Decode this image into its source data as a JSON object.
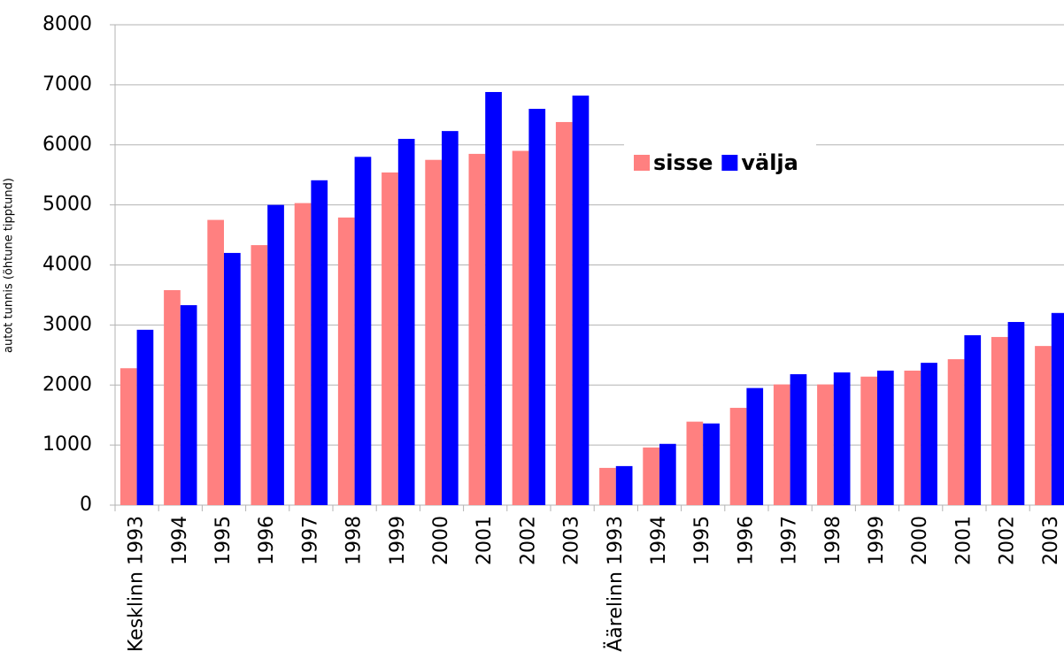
{
  "chart_data": {
    "type": "bar",
    "y_label": "autot tunnis (õhtune tipptund)",
    "categories": [
      "Kesklinn 1993",
      "1994",
      "1995",
      "1996",
      "1997",
      "1998",
      "1999",
      "2000",
      "2001",
      "2002",
      "2003",
      "Äärelinn 1993",
      "1994",
      "1995",
      "1996",
      "1997",
      "1998",
      "1999",
      "2000",
      "2001",
      "2002",
      "2003"
    ],
    "series": [
      {
        "name": "sisse",
        "color": "#ff8080",
        "values": [
          2280,
          3580,
          4750,
          4330,
          5030,
          4790,
          5540,
          5750,
          5850,
          5900,
          6380,
          620,
          960,
          1390,
          1620,
          2010,
          2010,
          2140,
          2240,
          2430,
          2800,
          2650
        ]
      },
      {
        "name": "välja",
        "color": "#0000ff",
        "values": [
          2920,
          3330,
          4200,
          5000,
          5410,
          5800,
          6100,
          6230,
          6880,
          6600,
          6820,
          650,
          1020,
          1360,
          1950,
          2180,
          2210,
          2240,
          2370,
          2830,
          3050,
          3200
        ]
      }
    ],
    "ylim": [
      0,
      8000
    ],
    "yticks": [
      0,
      1000,
      2000,
      3000,
      4000,
      5000,
      6000,
      7000,
      8000
    ],
    "grid": true,
    "legend": "upper right"
  }
}
